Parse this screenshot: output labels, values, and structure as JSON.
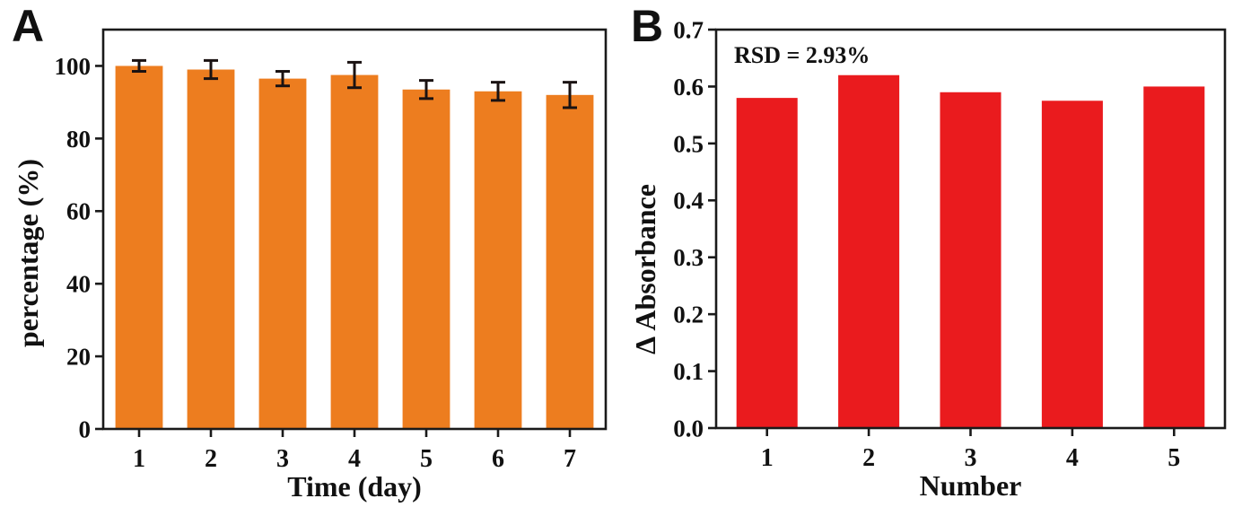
{
  "figure": {
    "background": "#ffffff",
    "panels": [
      {
        "label": "A"
      },
      {
        "label": "B"
      }
    ]
  },
  "chart_data": [
    {
      "type": "bar",
      "panel": "A",
      "title": "",
      "categories": [
        "1",
        "2",
        "3",
        "4",
        "5",
        "6",
        "7"
      ],
      "values": [
        100,
        99,
        96.5,
        97.5,
        93.5,
        93,
        92
      ],
      "errors": [
        1.5,
        2.5,
        2,
        3.5,
        2.5,
        2.5,
        3.5
      ],
      "xlabel": "Time (day)",
      "ylabel": "percentage (%)",
      "ylim": [
        0,
        110
      ],
      "yticks": [
        {
          "v": 0,
          "label": "0"
        },
        {
          "v": 20,
          "label": "20"
        },
        {
          "v": 40,
          "label": "40"
        },
        {
          "v": 60,
          "label": "60"
        },
        {
          "v": 80,
          "label": "80"
        },
        {
          "v": 100,
          "label": "100"
        }
      ],
      "bar_color": "#ED7D1F",
      "error_color": "#1a1212",
      "axis_color": "#1a1a1a",
      "annotation": "",
      "legend": null,
      "grid": false
    },
    {
      "type": "bar",
      "panel": "B",
      "title": "",
      "categories": [
        "1",
        "2",
        "3",
        "4",
        "5"
      ],
      "values": [
        0.58,
        0.62,
        0.59,
        0.575,
        0.6
      ],
      "errors": null,
      "xlabel": "Number",
      "ylabel": "Δ Absorbance",
      "ylim": [
        0,
        0.7
      ],
      "yticks": [
        {
          "v": 0.0,
          "label": "0.0"
        },
        {
          "v": 0.1,
          "label": "0.1"
        },
        {
          "v": 0.2,
          "label": "0.2"
        },
        {
          "v": 0.3,
          "label": "0.3"
        },
        {
          "v": 0.4,
          "label": "0.4"
        },
        {
          "v": 0.5,
          "label": "0.5"
        },
        {
          "v": 0.6,
          "label": "0.6"
        },
        {
          "v": 0.7,
          "label": "0.7"
        }
      ],
      "bar_color": "#EA1B1E",
      "error_color": "#1a1212",
      "axis_color": "#1a1a1a",
      "annotation": "RSD = 2.93%",
      "legend": null,
      "grid": false
    }
  ]
}
